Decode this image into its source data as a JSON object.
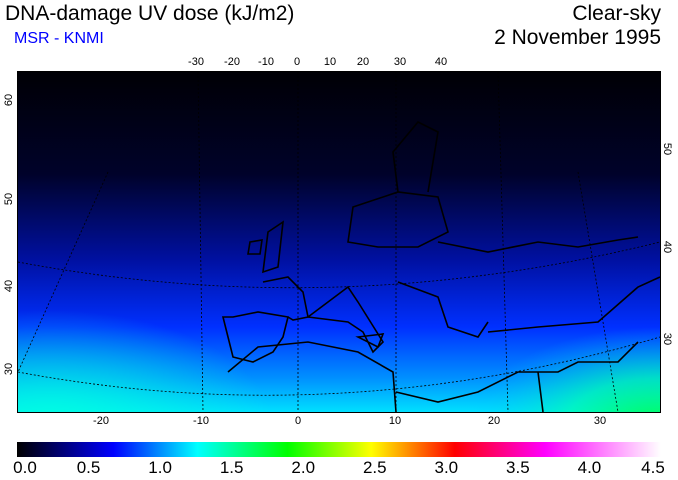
{
  "header": {
    "title": "DNA-damage UV dose (kJ/m2)",
    "source": "MSR - KNMI",
    "condition": "Clear-sky",
    "date": "2 November 1995"
  },
  "map": {
    "top_lon_labels": [
      "-30",
      "-20",
      "-10",
      "0",
      "10",
      "20",
      "30",
      "40"
    ],
    "bottom_lon_labels": [
      "-20",
      "-10",
      "0",
      "10",
      "20",
      "30"
    ],
    "left_lat_labels": [
      "60",
      "50",
      "40",
      "30"
    ],
    "right_lat_labels": [
      "50",
      "40",
      "30"
    ]
  },
  "colorbar": {
    "labels": [
      "0.0",
      "0.5",
      "1.0",
      "1.5",
      "2.0",
      "2.5",
      "3.0",
      "3.5",
      "4.0",
      "4.5"
    ],
    "min": 0.0,
    "max": 4.5
  }
}
